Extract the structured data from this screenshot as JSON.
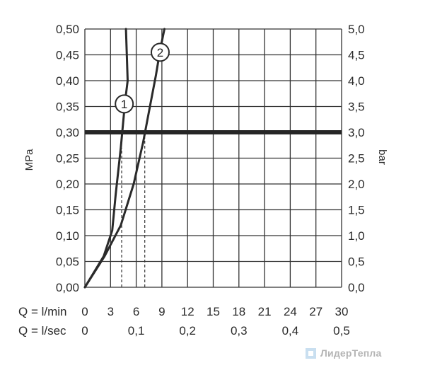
{
  "chart_data": {
    "type": "line",
    "title": "",
    "y_left": {
      "label": "MPa",
      "range": [
        0,
        0.5
      ],
      "ticks": [
        "0,00",
        "0,05",
        "0,10",
        "0,15",
        "0,20",
        "0,25",
        "0,30",
        "0,35",
        "0,40",
        "0,45",
        "0,50"
      ]
    },
    "y_right": {
      "label": "bar",
      "range": [
        0,
        5
      ],
      "ticks": [
        "0,0",
        "0,5",
        "1,0",
        "1,5",
        "2,0",
        "2,5",
        "3,0",
        "3,5",
        "4,0",
        "4,5",
        "5,0"
      ]
    },
    "x_rows": [
      {
        "label": "Q = l/min",
        "range": [
          0,
          30
        ],
        "ticks": [
          "0",
          "3",
          "6",
          "9",
          "12",
          "15",
          "18",
          "21",
          "24",
          "27",
          "30"
        ]
      },
      {
        "label": "Q = l/sec",
        "range": [
          0,
          0.5
        ],
        "ticks": [
          "0",
          "0,1",
          "0,2",
          "0,3",
          "0,4",
          "0,5"
        ]
      }
    ],
    "grid": true,
    "reference_line": {
      "y": 0.3,
      "units": "MPa"
    },
    "series": [
      {
        "name": "1",
        "points": [
          [
            0,
            0
          ],
          [
            2.2,
            0.06
          ],
          [
            3.2,
            0.11
          ],
          [
            3.6,
            0.18
          ],
          [
            4.2,
            0.27
          ],
          [
            4.7,
            0.36
          ],
          [
            5.0,
            0.4
          ],
          [
            4.9,
            0.45
          ],
          [
            4.8,
            0.5
          ]
        ]
      },
      {
        "name": "2",
        "points": [
          [
            0,
            0
          ],
          [
            2.3,
            0.06
          ],
          [
            4.2,
            0.12
          ],
          [
            5.7,
            0.2
          ],
          [
            6.8,
            0.28
          ],
          [
            7.6,
            0.35
          ],
          [
            8.3,
            0.41
          ],
          [
            8.8,
            0.46
          ],
          [
            9.3,
            0.5
          ]
        ]
      }
    ],
    "guide_lines": [
      {
        "x": 4.3,
        "y_from": 0,
        "y_to": 0.27
      },
      {
        "x": 7.0,
        "y_from": 0,
        "y_to": 0.29
      }
    ]
  },
  "watermark": {
    "text": "ЛидерТепла"
  },
  "colors": {
    "line": "#2a2a2a",
    "grid": "#333333",
    "watermark": "#b4b4b4"
  }
}
